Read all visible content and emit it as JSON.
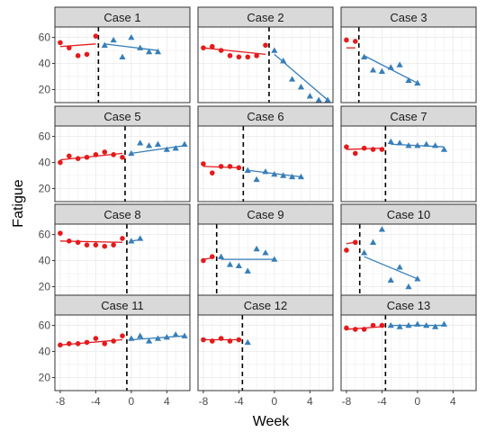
{
  "chart_data": {
    "type": "scatter",
    "xlabel": "Week",
    "ylabel": "Fatigue",
    "xlim": [
      -8.6,
      6.6
    ],
    "ylim": [
      10,
      68
    ],
    "x_ticks": [
      -8,
      -4,
      0,
      4
    ],
    "y_ticks": [
      20,
      40,
      60
    ],
    "grid": true,
    "colors": {
      "phase_a": "#E41A1C",
      "phase_b": "#377EB8"
    },
    "panels": [
      {
        "title": "Case 1",
        "cutoff": -3.7,
        "phase_a": {
          "x": [
            -8,
            -7,
            -6,
            -5,
            -4
          ],
          "y": [
            56,
            52,
            46,
            47,
            61
          ]
        },
        "phase_a_fit": {
          "x": [
            -8,
            -4
          ],
          "y": [
            53,
            55
          ]
        },
        "phase_b": {
          "x": [
            -3,
            -2,
            -1,
            0,
            1,
            2,
            3
          ],
          "y": [
            54,
            58,
            45,
            60,
            52,
            49,
            49
          ]
        },
        "phase_b_fit": {
          "x": [
            -3,
            3
          ],
          "y": [
            55,
            50
          ]
        }
      },
      {
        "title": "Case 2",
        "cutoff": -0.6,
        "phase_a": {
          "x": [
            -8,
            -7,
            -6,
            -5,
            -4,
            -3,
            -2,
            -1
          ],
          "y": [
            52,
            53,
            50,
            46,
            45,
            45,
            46,
            54
          ]
        },
        "phase_a_fit": {
          "x": [
            -8,
            -1
          ],
          "y": [
            52,
            47
          ]
        },
        "phase_b": {
          "x": [
            0,
            1,
            2,
            3,
            4,
            5,
            6
          ],
          "y": [
            50,
            42,
            28,
            22,
            15,
            12,
            12
          ]
        },
        "phase_b_fit": {
          "x": [
            0,
            6
          ],
          "y": [
            47,
            12
          ]
        }
      },
      {
        "title": "Case 3",
        "cutoff": -6.6,
        "phase_a": {
          "x": [
            -8,
            -7
          ],
          "y": [
            58,
            57
          ]
        },
        "phase_a_fit": {
          "x": [
            -8,
            -7
          ],
          "y": [
            52,
            52
          ]
        },
        "phase_b": {
          "x": [
            -6,
            -5,
            -4,
            -3,
            -2,
            -1,
            0
          ],
          "y": [
            45,
            35,
            34,
            37,
            39,
            27,
            25
          ]
        },
        "phase_b_fit": {
          "x": [
            -6,
            0
          ],
          "y": [
            46,
            25
          ]
        }
      },
      {
        "title": "Case 5",
        "cutoff": -0.7,
        "phase_a": {
          "x": [
            -8,
            -7,
            -6,
            -5,
            -4,
            -3,
            -2,
            -1
          ],
          "y": [
            40,
            45,
            43,
            44,
            46,
            48,
            46,
            44
          ]
        },
        "phase_a_fit": {
          "x": [
            -8,
            -1
          ],
          "y": [
            42,
            47
          ]
        },
        "phase_b": {
          "x": [
            0,
            1,
            2,
            3,
            4,
            5,
            6
          ],
          "y": [
            47,
            55,
            53,
            54,
            50,
            51,
            54
          ]
        },
        "phase_b_fit": {
          "x": [
            0,
            6
          ],
          "y": [
            47,
            53
          ]
        }
      },
      {
        "title": "Case 6",
        "cutoff": -3.5,
        "phase_a": {
          "x": [
            -8,
            -7,
            -6,
            -5,
            -4
          ],
          "y": [
            39,
            32,
            37,
            37,
            36
          ]
        },
        "phase_a_fit": {
          "x": [
            -8,
            -4
          ],
          "y": [
            37,
            36
          ]
        },
        "phase_b": {
          "x": [
            -3,
            -2,
            -1,
            0,
            1,
            2,
            3
          ],
          "y": [
            34,
            27,
            33,
            31,
            30,
            29,
            29
          ]
        },
        "phase_b_fit": {
          "x": [
            -3,
            3
          ],
          "y": [
            34,
            29
          ]
        }
      },
      {
        "title": "Case 7",
        "cutoff": -3.6,
        "phase_a": {
          "x": [
            -8,
            -7,
            -6,
            -5,
            -4
          ],
          "y": [
            52,
            47,
            51,
            50,
            50
          ]
        },
        "phase_a_fit": {
          "x": [
            -8,
            -4
          ],
          "y": [
            50,
            51
          ]
        },
        "phase_b": {
          "x": [
            -3,
            -2,
            -1,
            0,
            1,
            2,
            3
          ],
          "y": [
            56,
            55,
            53,
            53,
            54,
            53,
            50
          ]
        },
        "phase_b_fit": {
          "x": [
            -3,
            3
          ],
          "y": [
            54,
            52
          ]
        }
      },
      {
        "title": "Case 8",
        "cutoff": -0.5,
        "phase_a": {
          "x": [
            -8,
            -7,
            -6,
            -5,
            -4,
            -3,
            -2,
            -1
          ],
          "y": [
            61,
            55,
            54,
            52,
            52,
            51,
            52,
            57
          ]
        },
        "phase_a_fit": {
          "x": [
            -8,
            -1
          ],
          "y": [
            55,
            54
          ]
        },
        "phase_b": {
          "x": [
            0,
            1
          ],
          "y": [
            55,
            57
          ]
        },
        "phase_b_fit": {
          "x": [
            0,
            1
          ],
          "y": [
            55,
            56
          ]
        }
      },
      {
        "title": "Case 9",
        "cutoff": -6.5,
        "phase_a": {
          "x": [
            -8,
            -7
          ],
          "y": [
            40,
            43
          ]
        },
        "phase_a_fit": {
          "x": [
            -8,
            -7
          ],
          "y": [
            41,
            42
          ]
        },
        "phase_b": {
          "x": [
            -6,
            -5,
            -4,
            -3,
            -2,
            -1,
            0
          ],
          "y": [
            43,
            37,
            36,
            32,
            49,
            46,
            41
          ]
        },
        "phase_b_fit": {
          "x": [
            -6,
            0
          ],
          "y": [
            41,
            41
          ]
        }
      },
      {
        "title": "Case 10",
        "cutoff": -6.5,
        "phase_a": {
          "x": [
            -8,
            -7
          ],
          "y": [
            48,
            54
          ]
        },
        "phase_a_fit": {
          "x": [
            -8,
            -7
          ],
          "y": [
            53,
            54
          ]
        },
        "phase_b": {
          "x": [
            -6,
            -5,
            -4,
            -3,
            -2,
            -1,
            0
          ],
          "y": [
            46,
            54,
            64,
            25,
            35,
            20,
            26
          ]
        },
        "phase_b_fit": {
          "x": [
            -6,
            0
          ],
          "y": [
            43,
            26
          ]
        }
      },
      {
        "title": "Case 11",
        "cutoff": -0.5,
        "phase_a": {
          "x": [
            -8,
            -7,
            -6,
            -5,
            -4,
            -3,
            -2,
            -1
          ],
          "y": [
            45,
            46,
            46,
            47,
            50,
            46,
            48,
            52
          ]
        },
        "phase_a_fit": {
          "x": [
            -8,
            -1
          ],
          "y": [
            45,
            49
          ]
        },
        "phase_b": {
          "x": [
            0,
            1,
            2,
            3,
            4,
            5,
            6
          ],
          "y": [
            50,
            52,
            48,
            50,
            51,
            53,
            52
          ]
        },
        "phase_b_fit": {
          "x": [
            0,
            6
          ],
          "y": [
            49,
            52
          ]
        }
      },
      {
        "title": "Case 12",
        "cutoff": -3.6,
        "phase_a": {
          "x": [
            -8,
            -7,
            -6,
            -5,
            -4
          ],
          "y": [
            49,
            48,
            50,
            48,
            49
          ]
        },
        "phase_a_fit": {
          "x": [
            -8,
            -4
          ],
          "y": [
            49,
            49
          ]
        },
        "phase_b": {
          "x": [
            -3
          ],
          "y": [
            47
          ]
        },
        "phase_b_fit": {
          "x": [],
          "y": []
        }
      },
      {
        "title": "Case 13",
        "cutoff": -3.6,
        "phase_a": {
          "x": [
            -8,
            -7,
            -6,
            -5,
            -4
          ],
          "y": [
            58,
            57,
            57,
            60,
            60
          ]
        },
        "phase_a_fit": {
          "x": [
            -8,
            -4
          ],
          "y": [
            57,
            59
          ]
        },
        "phase_b": {
          "x": [
            -3,
            -2,
            -1,
            0,
            1,
            2,
            3
          ],
          "y": [
            60,
            59,
            60,
            61,
            60,
            59,
            61
          ]
        },
        "phase_b_fit": {
          "x": [
            -3,
            3
          ],
          "y": [
            60,
            60
          ]
        }
      }
    ]
  }
}
